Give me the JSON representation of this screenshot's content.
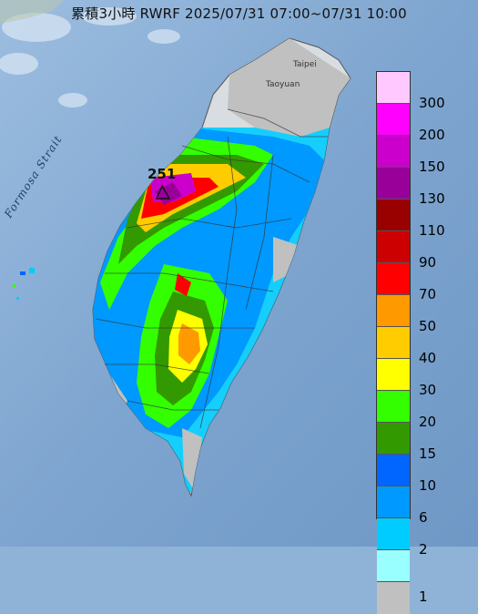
{
  "title": "累積3小時 RWRF 2025/07/31 07:00~07/31 10:00",
  "strait_label": "Formosa Strait",
  "cities": {
    "taipei": "Taipei",
    "taoyuan": "Taoyuan"
  },
  "max_marker": "251",
  "legend": [
    {
      "label": "300",
      "color": "#ffc8ff"
    },
    {
      "label": "200",
      "color": "#ff00ff"
    },
    {
      "label": "150",
      "color": "#cc00cc"
    },
    {
      "label": "130",
      "color": "#990099"
    },
    {
      "label": "110",
      "color": "#990000"
    },
    {
      "label": "90",
      "color": "#cc0000"
    },
    {
      "label": "70",
      "color": "#ff0000"
    },
    {
      "label": "50",
      "color": "#ff9900"
    },
    {
      "label": "40",
      "color": "#ffcc00"
    },
    {
      "label": "30",
      "color": "#ffff00"
    },
    {
      "label": "20",
      "color": "#33ff00"
    },
    {
      "label": "15",
      "color": "#339900"
    },
    {
      "label": "10",
      "color": "#0066ff"
    },
    {
      "label": "6",
      "color": "#0099ff"
    },
    {
      "label": "2",
      "color": "#00ccff"
    },
    {
      "label": "1",
      "color": "#99ffff"
    },
    {
      "label": "",
      "color": "#c0c0c0"
    }
  ]
}
